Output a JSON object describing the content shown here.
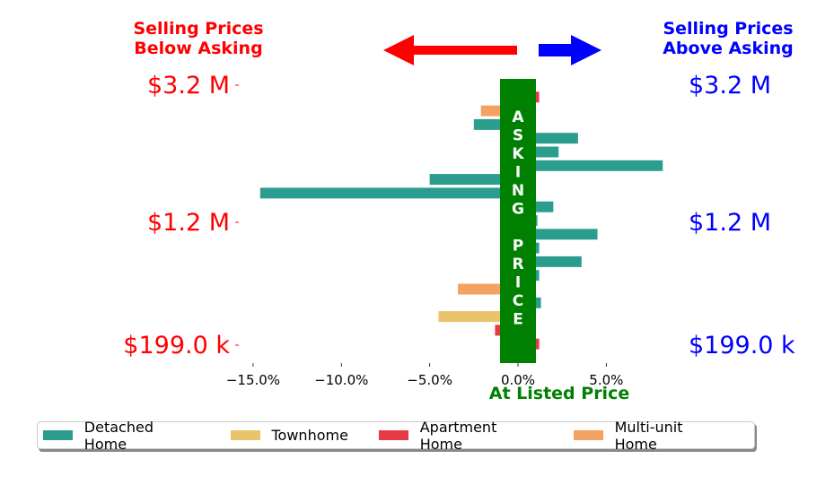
{
  "header": {
    "left_title_line1": "Selling Prices",
    "left_title_line2": "Below Asking",
    "right_title_line1": "Selling Prices",
    "right_title_line2": "Above Asking"
  },
  "colors": {
    "below": "#ff0000",
    "above": "#0000ff",
    "asking_bar": "#008000",
    "detached": "#2a9d8f",
    "townhome": "#e9c46a",
    "apartment": "#e63946",
    "multiunit": "#f4a261"
  },
  "asking_label": "ASKING PRICE",
  "chart_data": {
    "type": "bar",
    "orientation": "horizontal",
    "xlabel": "At Listed Price",
    "x_ticks": [
      "−15.0%",
      "−10.0%",
      "−5.0%",
      "0.0%",
      "5.0%"
    ],
    "x_tick_values": [
      -15,
      -10,
      -5,
      0,
      5
    ],
    "xlim": [
      -15.4,
      8.1
    ],
    "y_tick_labels_left": [
      "$3.2 M",
      "$1.2 M",
      "$199.0 k"
    ],
    "y_tick_labels_right": [
      "$3.2 M",
      "$1.2 M",
      "$199.0 k"
    ],
    "y_tick_rows": [
      1,
      11,
      20
    ],
    "series": [
      {
        "name": "Detached Home",
        "color": "#2a9d8f"
      },
      {
        "name": "Townhome",
        "color": "#e9c46a"
      },
      {
        "name": "Apartment Home",
        "color": "#e63946"
      },
      {
        "name": "Multi-unit Home",
        "color": "#f4a261"
      }
    ],
    "bars": [
      {
        "row": 1,
        "value": 1.2,
        "series": "Apartment Home"
      },
      {
        "row": 2,
        "value": -2.1,
        "series": "Multi-unit Home"
      },
      {
        "row": 3,
        "value": -2.5,
        "series": "Detached Home"
      },
      {
        "row": 4,
        "value": 3.4,
        "series": "Detached Home"
      },
      {
        "row": 5,
        "value": 2.3,
        "series": "Detached Home"
      },
      {
        "row": 6,
        "value": 8.2,
        "series": "Detached Home"
      },
      {
        "row": 7,
        "value": -5.0,
        "series": "Detached Home"
      },
      {
        "row": 8,
        "value": -14.6,
        "series": "Detached Home"
      },
      {
        "row": 9,
        "value": 2.0,
        "series": "Detached Home"
      },
      {
        "row": 10,
        "value": 1.1,
        "series": "Detached Home"
      },
      {
        "row": 11,
        "value": 4.5,
        "series": "Detached Home"
      },
      {
        "row": 12,
        "value": 1.2,
        "series": "Detached Home"
      },
      {
        "row": 13,
        "value": 3.6,
        "series": "Detached Home"
      },
      {
        "row": 14,
        "value": 1.2,
        "series": "Detached Home"
      },
      {
        "row": 15,
        "value": -3.4,
        "series": "Multi-unit Home"
      },
      {
        "row": 16,
        "value": 1.3,
        "series": "Detached Home"
      },
      {
        "row": 17,
        "value": -4.5,
        "series": "Townhome"
      },
      {
        "row": 18,
        "value": -1.3,
        "series": "Apartment Home"
      },
      {
        "row": 19,
        "value": 1.2,
        "series": "Apartment Home"
      }
    ],
    "legend": [
      "Detached Home",
      "Townhome",
      "Apartment Home",
      "Multi-unit Home"
    ],
    "legend_position": "bottom"
  }
}
